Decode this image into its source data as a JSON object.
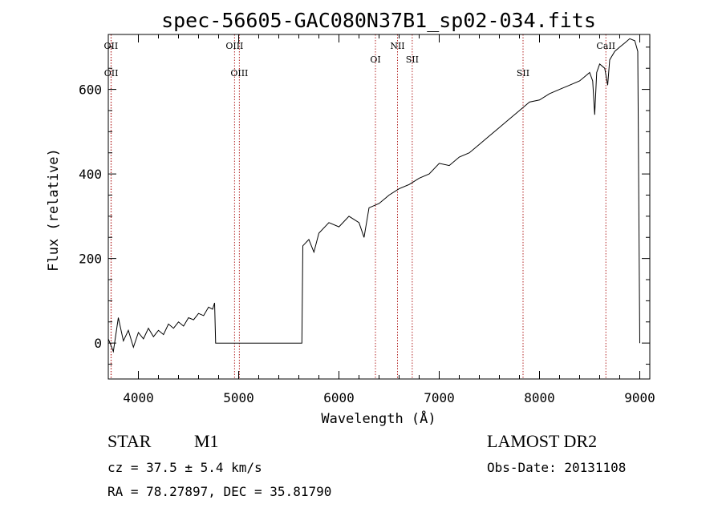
{
  "chart_data": {
    "type": "line",
    "title": "spec-56605-GAC080N37B1_sp02-034.fits",
    "xlabel": "Wavelength (Å)",
    "ylabel": "Flux (relative)",
    "xlim": [
      3700,
      9100
    ],
    "ylim": [
      -85,
      730
    ],
    "x_ticks": [
      4000,
      5000,
      6000,
      7000,
      8000,
      9000
    ],
    "y_ticks": [
      0,
      200,
      400,
      600
    ],
    "grid": false,
    "series": [
      {
        "points": [
          [
            3700,
            10
          ],
          [
            3750,
            -20
          ],
          [
            3800,
            60
          ],
          [
            3850,
            5
          ],
          [
            3900,
            30
          ],
          [
            3950,
            -10
          ],
          [
            4000,
            25
          ],
          [
            4050,
            10
          ],
          [
            4100,
            35
          ],
          [
            4150,
            15
          ],
          [
            4200,
            30
          ],
          [
            4250,
            20
          ],
          [
            4300,
            45
          ],
          [
            4350,
            35
          ],
          [
            4400,
            50
          ],
          [
            4450,
            40
          ],
          [
            4500,
            60
          ],
          [
            4550,
            55
          ],
          [
            4600,
            70
          ],
          [
            4650,
            65
          ],
          [
            4700,
            85
          ],
          [
            4740,
            80
          ],
          [
            4760,
            95
          ],
          [
            4770,
            0
          ],
          [
            5000,
            0
          ],
          [
            5630,
            0
          ],
          [
            5640,
            230
          ],
          [
            5700,
            245
          ],
          [
            5750,
            215
          ],
          [
            5800,
            260
          ],
          [
            5900,
            285
          ],
          [
            6000,
            275
          ],
          [
            6100,
            300
          ],
          [
            6200,
            285
          ],
          [
            6250,
            250
          ],
          [
            6300,
            320
          ],
          [
            6400,
            330
          ],
          [
            6450,
            340
          ],
          [
            6500,
            350
          ],
          [
            6600,
            365
          ],
          [
            6700,
            375
          ],
          [
            6800,
            390
          ],
          [
            6900,
            400
          ],
          [
            7000,
            425
          ],
          [
            7100,
            420
          ],
          [
            7200,
            440
          ],
          [
            7300,
            450
          ],
          [
            7400,
            470
          ],
          [
            7500,
            490
          ],
          [
            7600,
            510
          ],
          [
            7700,
            530
          ],
          [
            7800,
            550
          ],
          [
            7900,
            570
          ],
          [
            8000,
            575
          ],
          [
            8100,
            590
          ],
          [
            8200,
            600
          ],
          [
            8300,
            610
          ],
          [
            8400,
            620
          ],
          [
            8450,
            630
          ],
          [
            8500,
            640
          ],
          [
            8530,
            620
          ],
          [
            8550,
            540
          ],
          [
            8570,
            640
          ],
          [
            8600,
            660
          ],
          [
            8650,
            650
          ],
          [
            8680,
            610
          ],
          [
            8700,
            670
          ],
          [
            8750,
            690
          ],
          [
            8800,
            700
          ],
          [
            8850,
            710
          ],
          [
            8900,
            720
          ],
          [
            8950,
            715
          ],
          [
            8980,
            690
          ],
          [
            9000,
            0
          ]
        ]
      }
    ],
    "lines": [
      {
        "label": "OII",
        "x": 3727,
        "row": 1
      },
      {
        "label": "OII",
        "x": 3729,
        "row": 2
      },
      {
        "label": "OIII",
        "x": 4959,
        "row": 1
      },
      {
        "label": "OIII",
        "x": 5007,
        "row": 2
      },
      {
        "label": "OI",
        "x": 6364,
        "row": 3
      },
      {
        "label": "NII",
        "x": 6584,
        "row": 1
      },
      {
        "label": "SII",
        "x": 6731,
        "row": 3
      },
      {
        "label": "SII",
        "x": 7836,
        "row": 4
      },
      {
        "label": "CaII",
        "x": 8662,
        "row": 1
      }
    ],
    "line_color": "#b22222"
  },
  "info": {
    "class_label": "STAR",
    "subclass": "M1",
    "survey": "LAMOST DR2",
    "cz": "cz = 37.5 ± 5.4 km/s",
    "obs_date": "Obs-Date: 20131108",
    "radec": "RA =  78.27897, DEC =  35.81790"
  }
}
